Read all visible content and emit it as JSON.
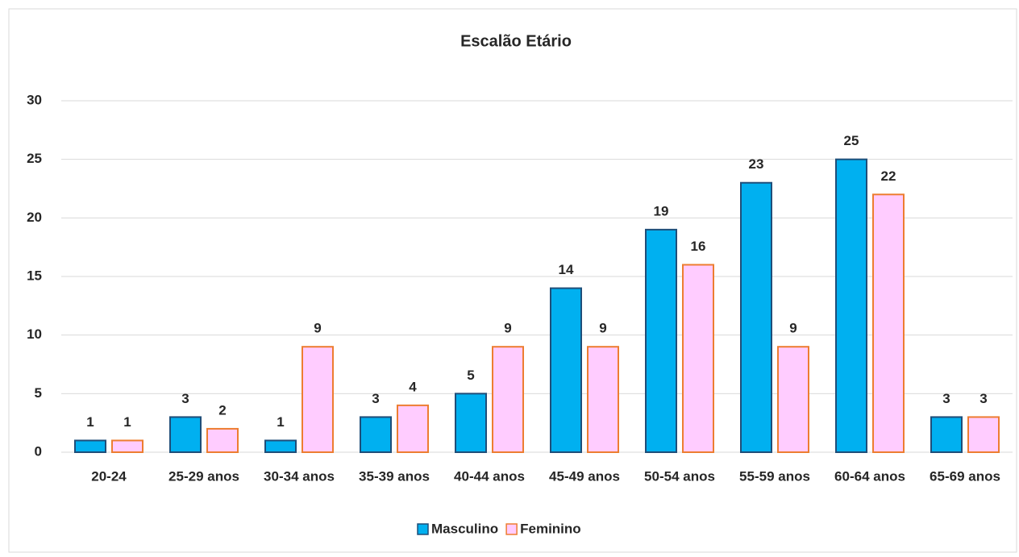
{
  "chart_data": {
    "type": "bar",
    "title": "Escalão Etário",
    "categories": [
      "20-24",
      "25-29 anos",
      "30-34 anos",
      "35-39 anos",
      "40-44 anos",
      "45-49 anos",
      "50-54 anos",
      "55-59 anos",
      "60-64 anos",
      "65-69 anos"
    ],
    "series": [
      {
        "name": "Masculino",
        "color": "#00b0f0",
        "stroke": "#1f4e79",
        "values": [
          1,
          3,
          1,
          3,
          5,
          14,
          19,
          23,
          25,
          3
        ]
      },
      {
        "name": "Feminino",
        "color": "#ffccff",
        "stroke": "#ed7d31",
        "values": [
          1,
          2,
          9,
          4,
          9,
          9,
          16,
          9,
          22,
          3
        ]
      }
    ],
    "ylim": [
      0,
      30
    ],
    "yticks": [
      0,
      5,
      10,
      15,
      20,
      25,
      30
    ],
    "grid": true,
    "legend": "bottom"
  }
}
